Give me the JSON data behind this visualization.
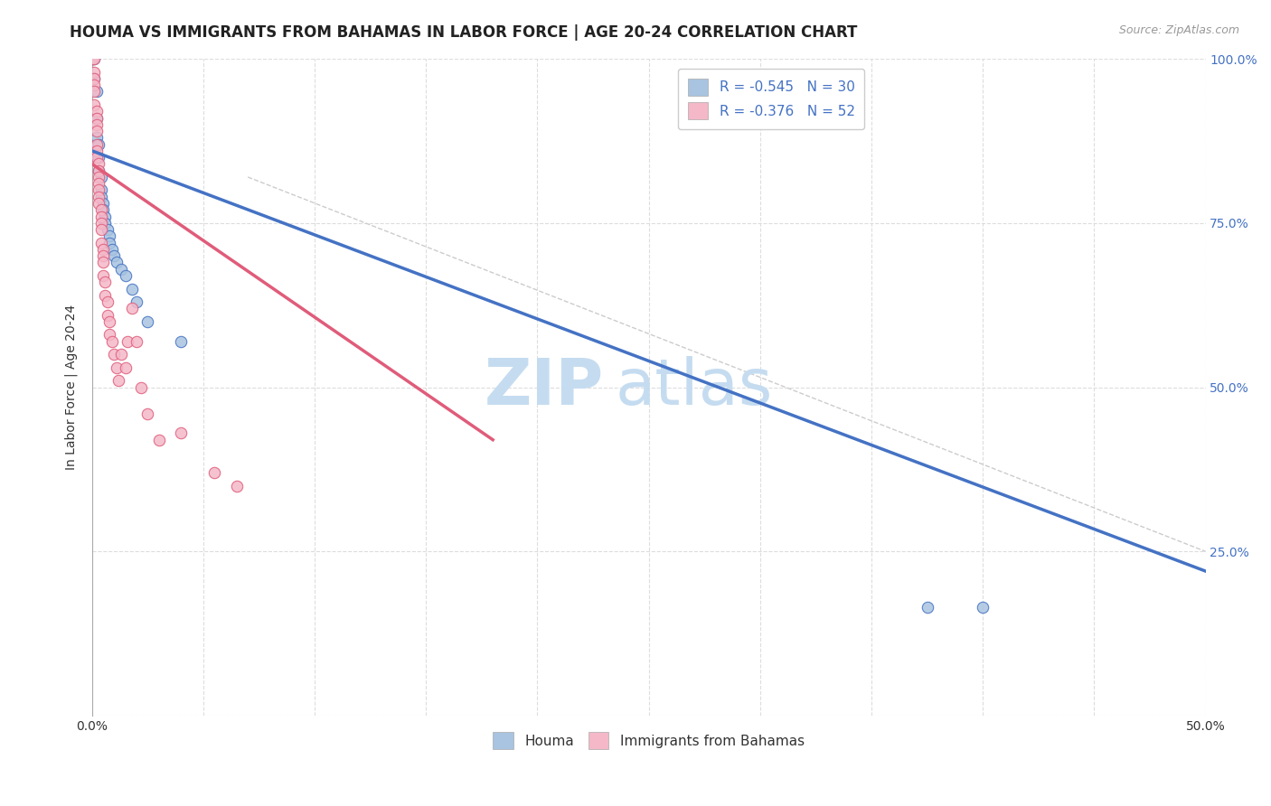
{
  "title": "HOUMA VS IMMIGRANTS FROM BAHAMAS IN LABOR FORCE | AGE 20-24 CORRELATION CHART",
  "source": "Source: ZipAtlas.com",
  "ylabel": "In Labor Force | Age 20-24",
  "xlim": [
    0.0,
    0.5
  ],
  "ylim": [
    0.0,
    1.0
  ],
  "xticks": [
    0.0,
    0.05,
    0.1,
    0.15,
    0.2,
    0.25,
    0.3,
    0.35,
    0.4,
    0.45,
    0.5
  ],
  "xticklabels_show": {
    "0.0": "0.0%",
    "0.5": "50.0%"
  },
  "yticks": [
    0.0,
    0.25,
    0.5,
    0.75,
    1.0
  ],
  "yticklabels": [
    "",
    "",
    "",
    "",
    ""
  ],
  "right_yticklabels": [
    "100.0%",
    "75.0%",
    "50.0%",
    "25.0%"
  ],
  "right_ytick_positions": [
    1.0,
    0.75,
    0.5,
    0.25
  ],
  "houma_R": -0.545,
  "houma_N": 30,
  "bahamas_R": -0.376,
  "bahamas_N": 52,
  "houma_color": "#a8c4e0",
  "bahamas_color": "#f4b8c8",
  "houma_line_color": "#4472c4",
  "bahamas_line_color": "#e05c7a",
  "watermark_part1": "ZIP",
  "watermark_part2": "atlas",
  "houma_scatter_x": [
    0.0,
    0.001,
    0.001,
    0.002,
    0.002,
    0.002,
    0.003,
    0.003,
    0.003,
    0.004,
    0.004,
    0.004,
    0.005,
    0.005,
    0.006,
    0.006,
    0.007,
    0.008,
    0.008,
    0.009,
    0.01,
    0.011,
    0.013,
    0.015,
    0.018,
    0.02,
    0.025,
    0.04,
    0.375,
    0.4
  ],
  "houma_scatter_y": [
    1.0,
    1.0,
    0.97,
    0.95,
    0.91,
    0.88,
    0.87,
    0.85,
    0.83,
    0.82,
    0.8,
    0.79,
    0.78,
    0.77,
    0.76,
    0.75,
    0.74,
    0.73,
    0.72,
    0.71,
    0.7,
    0.69,
    0.68,
    0.67,
    0.65,
    0.63,
    0.6,
    0.57,
    0.165,
    0.165
  ],
  "bahamas_scatter_x": [
    0.0,
    0.0,
    0.001,
    0.001,
    0.001,
    0.001,
    0.001,
    0.001,
    0.002,
    0.002,
    0.002,
    0.002,
    0.002,
    0.002,
    0.002,
    0.003,
    0.003,
    0.003,
    0.003,
    0.003,
    0.003,
    0.003,
    0.004,
    0.004,
    0.004,
    0.004,
    0.004,
    0.005,
    0.005,
    0.005,
    0.005,
    0.006,
    0.006,
    0.007,
    0.007,
    0.008,
    0.008,
    0.009,
    0.01,
    0.011,
    0.012,
    0.013,
    0.015,
    0.016,
    0.018,
    0.02,
    0.022,
    0.025,
    0.03,
    0.04,
    0.055,
    0.065
  ],
  "bahamas_scatter_y": [
    1.0,
    1.0,
    1.0,
    0.98,
    0.97,
    0.96,
    0.95,
    0.93,
    0.92,
    0.91,
    0.9,
    0.89,
    0.87,
    0.86,
    0.85,
    0.84,
    0.83,
    0.82,
    0.81,
    0.8,
    0.79,
    0.78,
    0.77,
    0.76,
    0.75,
    0.74,
    0.72,
    0.71,
    0.7,
    0.69,
    0.67,
    0.66,
    0.64,
    0.63,
    0.61,
    0.6,
    0.58,
    0.57,
    0.55,
    0.53,
    0.51,
    0.55,
    0.53,
    0.57,
    0.62,
    0.57,
    0.5,
    0.46,
    0.42,
    0.43,
    0.37,
    0.35
  ],
  "houma_line_x": [
    0.0,
    0.5
  ],
  "houma_line_y": [
    0.86,
    0.22
  ],
  "bahamas_line_x": [
    0.0,
    0.18
  ],
  "bahamas_line_y": [
    0.84,
    0.42
  ],
  "diag_line_x": [
    0.07,
    0.5
  ],
  "diag_line_y": [
    0.82,
    0.25
  ],
  "background_color": "#ffffff",
  "grid_color": "#dddddd",
  "title_fontsize": 12,
  "axis_label_fontsize": 10,
  "tick_fontsize": 10,
  "legend_fontsize": 11,
  "watermark_fontsize_zip": 52,
  "watermark_fontsize_atlas": 52,
  "watermark_color": "#c5dcf0",
  "marker_size": 80
}
